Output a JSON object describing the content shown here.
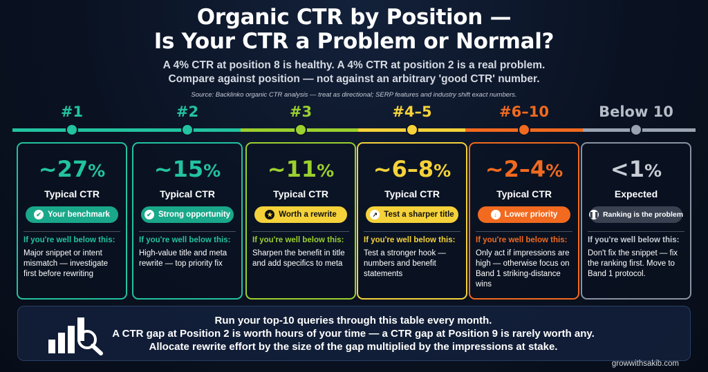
{
  "title_line1": "Organic CTR by Position —",
  "title_line2": "Is Your CTR a Problem or Normal?",
  "subtitle1": "A 4% CTR at position 8 is healthy. A 4% CTR at position 2 is a real problem.",
  "subtitle2": "Compare against position — not against an arbitrary 'good CTR' number.",
  "source": "Source: Backlinko organic CTR analysis — treat as directional; SERP features and industry shift exact numbers.",
  "if_below": "If you're well below this:",
  "columns": [
    {
      "band": "#1",
      "pct": "~27",
      "unit": "%",
      "label": "Typical CTR",
      "badge": "Your benchmark",
      "badge_icon": "check-icon",
      "body": "Major snippet or intent mismatch — investigate first before rewriting",
      "color": "#22c3a0"
    },
    {
      "band": "#2",
      "pct": "~15",
      "unit": "%",
      "label": "Typical CTR",
      "badge": "Strong opportunity",
      "badge_icon": "check-icon",
      "body": "High-value title and meta rewrite — top priority fix",
      "color": "#22c3a0"
    },
    {
      "band": "#3",
      "pct": "~11",
      "unit": "%",
      "label": "Typical CTR",
      "badge": "Worth a rewrite",
      "badge_icon": "star-icon",
      "body": "Sharpen the benefit in title and add specifics to meta",
      "color": "#9bd02f"
    },
    {
      "band": "#4–5",
      "pct": "~6–8",
      "unit": "%",
      "label": "Typical CTR",
      "badge": "Test a sharper title",
      "badge_icon": "trend-icon",
      "body": "Test a stronger hook — numbers and benefit statements",
      "color": "#f5d23a"
    },
    {
      "band": "#6–10",
      "pct": "~2–4",
      "unit": "%",
      "label": "Typical CTR",
      "badge": "Lower priority",
      "badge_icon": "down-arrow-icon",
      "body": "Only act if impressions are high — otherwise focus on Band 1 striking-distance wins",
      "color": "#f26a1f"
    },
    {
      "band": "Below 10",
      "pct": "<1",
      "unit": "%",
      "label": "Expected",
      "badge": "Ranking is the problem",
      "badge_icon": "pause-icon",
      "body": "Don't fix the snippet — fix the ranking first. Move to Band 1 protocol.",
      "color": "#9aa3b2"
    }
  ],
  "bottom_line1": "Run your top-10 queries through this table every month.",
  "bottom_line2": "A CTR gap at Position 2 is worth hours of your time — a CTR gap at Position 9 is rarely worth any.",
  "bottom_line3": "Allocate rewrite effort by the size of the gap multiplied by the impressions at stake.",
  "footer": "growwithsakib.com"
}
